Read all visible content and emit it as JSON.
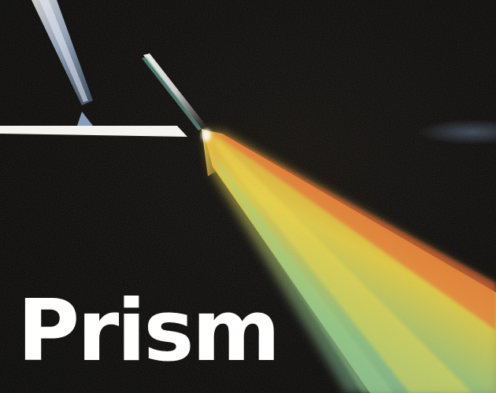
{
  "title": "Prism",
  "colors": {
    "background": "#050403",
    "title_text": "#ffffff",
    "beam_white": "#fbfaf5",
    "spectrum_red": "#e8542c",
    "spectrum_orange": "#f39a2f",
    "spectrum_yellow": "#f5dc45",
    "spectrum_green": "#9cd48a",
    "spectrum_teal": "#6fb7a8",
    "prism_edge_blue": "#8fb6e4"
  }
}
